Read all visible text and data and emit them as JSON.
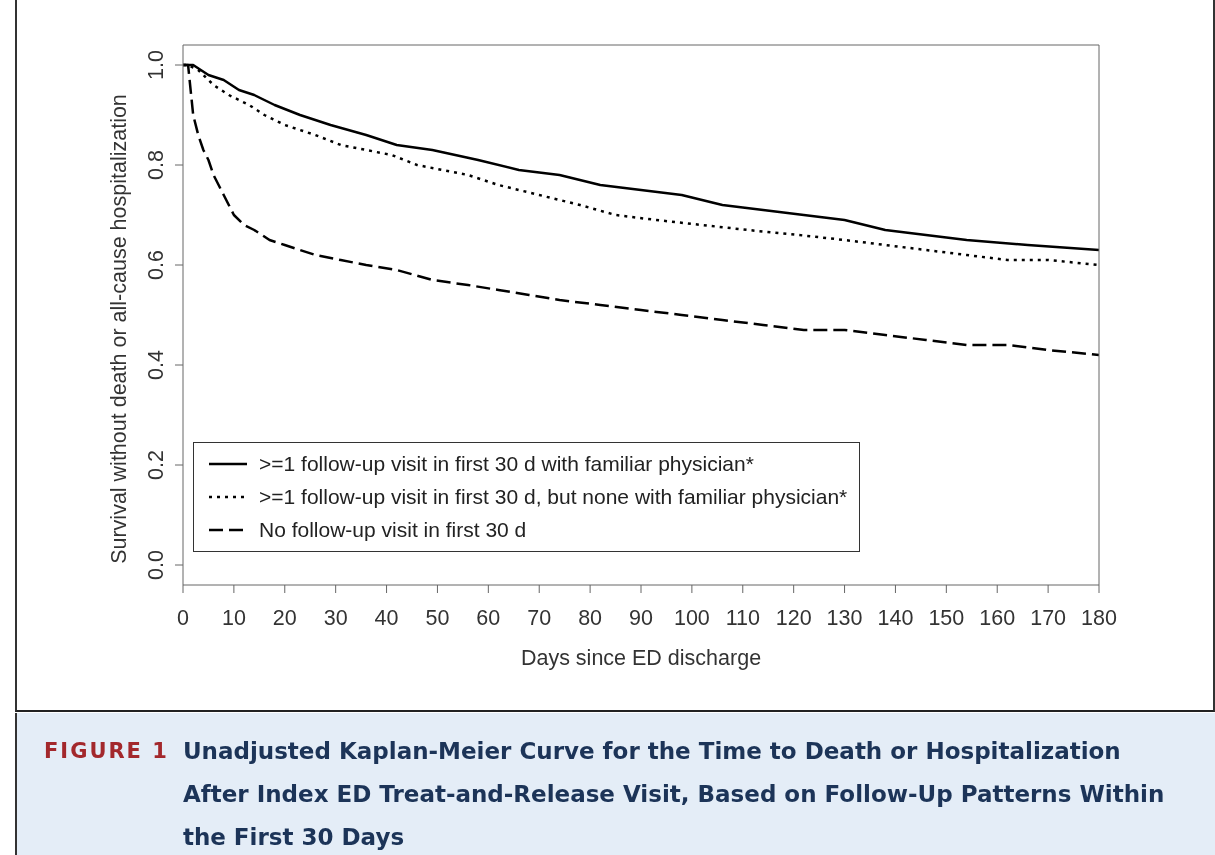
{
  "chart_data": {
    "type": "line",
    "title": "Unadjusted Kaplan-Meier Curve for the Time to Death or Hospitalization After Index ED Treat-and-Release Visit, Based on Follow-Up Patterns Within the First 30 Days",
    "annotations": [
      "FIGURE 1"
    ],
    "xlabel": "Days since ED discharge",
    "ylabel": "Survival without death or all-cause hospitalization",
    "xlim": [
      0,
      180
    ],
    "xticks": [
      0,
      10,
      20,
      30,
      40,
      50,
      60,
      70,
      80,
      90,
      100,
      110,
      120,
      130,
      140,
      150,
      160,
      170,
      180
    ],
    "ylim": [
      -0.04,
      1.04
    ],
    "yticks": [
      {
        "value": 0,
        "label": "0.0"
      },
      0.2,
      0.4,
      0.6,
      0.8,
      {
        "value": 1,
        "label": "1.0"
      }
    ],
    "legend": "bottom left",
    "series": [
      {
        "name": ">=1 follow-up visit in first 30 d with familiar physician*",
        "color": "#000000",
        "line_style": "solid",
        "x": [
          0,
          2,
          5,
          8,
          11,
          14,
          18,
          23,
          29,
          36,
          42,
          49,
          58,
          66,
          74,
          82,
          90,
          98,
          106,
          114,
          122,
          130,
          138,
          146,
          154,
          166,
          180
        ],
        "values": [
          1,
          1,
          0.98,
          0.97,
          0.95,
          0.94,
          0.92,
          0.9,
          0.88,
          0.86,
          0.84,
          0.83,
          0.81,
          0.79,
          0.78,
          0.76,
          0.75,
          0.74,
          0.72,
          0.71,
          0.7,
          0.69,
          0.67,
          0.66,
          0.65,
          0.64,
          0.63
        ]
      },
      {
        "name": ">=1 follow-up visit in first 30 d, but none with familiar physician*",
        "color": "#000000",
        "line_style": "dotted",
        "x": [
          0,
          1,
          3,
          6,
          9,
          13,
          16,
          20,
          26,
          31,
          36,
          41,
          46,
          51,
          56,
          62,
          70,
          78,
          85,
          93,
          102,
          111,
          121,
          130,
          138,
          146,
          154,
          162,
          170,
          180
        ],
        "values": [
          1,
          1,
          0.99,
          0.96,
          0.94,
          0.92,
          0.9,
          0.88,
          0.86,
          0.84,
          0.83,
          0.82,
          0.8,
          0.79,
          0.78,
          0.76,
          0.74,
          0.72,
          0.7,
          0.69,
          0.68,
          0.67,
          0.66,
          0.65,
          0.64,
          0.63,
          0.62,
          0.61,
          0.61,
          0.6
        ]
      },
      {
        "name": "No follow-up visit in first 30 d",
        "color": "#000000",
        "line_style": "dashed",
        "x": [
          0,
          1,
          2,
          3,
          4,
          5,
          6,
          7,
          8,
          9,
          10,
          12,
          14,
          17,
          20,
          26,
          31,
          36,
          42,
          49,
          56,
          62,
          68,
          74,
          82,
          90,
          98,
          106,
          114,
          122,
          130,
          138,
          146,
          154,
          162,
          170,
          180
        ],
        "values": [
          1,
          1,
          0.9,
          0.86,
          0.83,
          0.81,
          0.78,
          0.76,
          0.74,
          0.72,
          0.7,
          0.68,
          0.67,
          0.65,
          0.64,
          0.62,
          0.61,
          0.6,
          0.59,
          0.57,
          0.56,
          0.55,
          0.54,
          0.53,
          0.52,
          0.51,
          0.5,
          0.49,
          0.48,
          0.47,
          0.47,
          0.46,
          0.45,
          0.44,
          0.44,
          0.43,
          0.42
        ]
      }
    ]
  }
}
